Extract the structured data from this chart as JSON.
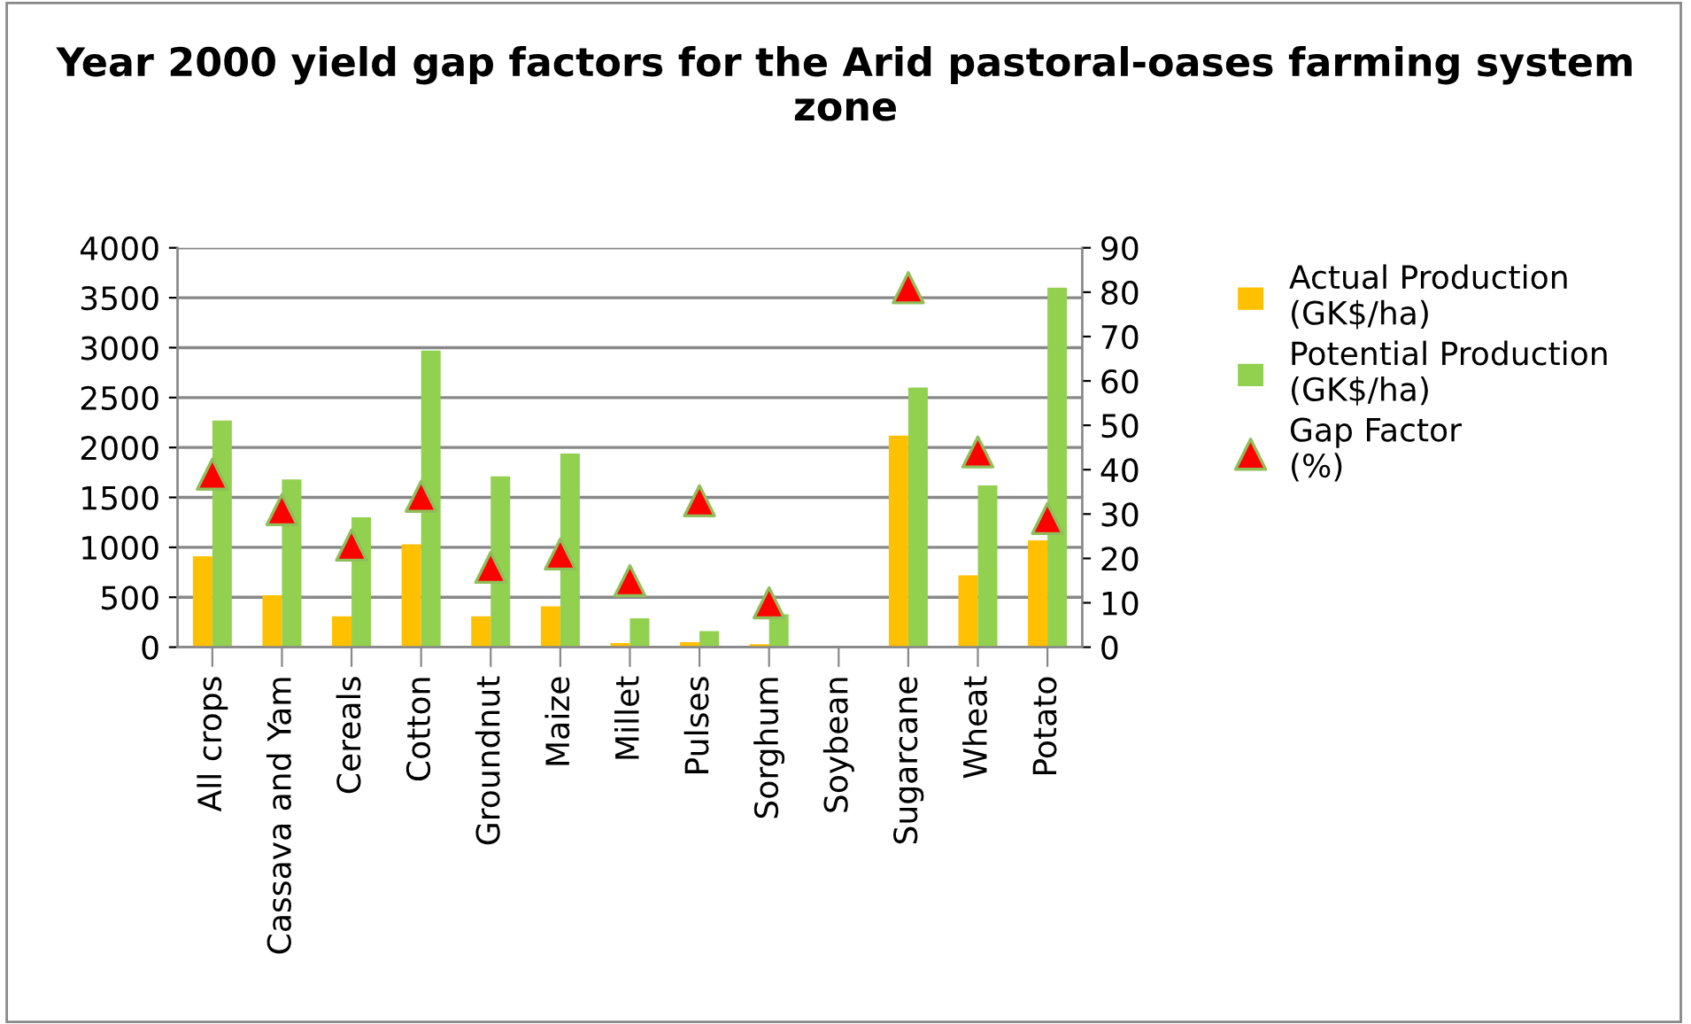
{
  "chart_data": {
    "type": "bar",
    "title": "Year 2000 yield gap factors for the Arid pastoral-oases farming system zone",
    "categories": [
      "All crops",
      "Cassava and Yam",
      "Cereals",
      "Cotton",
      "Groundnut",
      "Maize",
      "Millet",
      "Pulses",
      "Sorghum",
      "Soybean",
      "Sugarcane",
      "Wheat",
      "Potato"
    ],
    "series": [
      {
        "name": "Actual Production (GK$/ha)",
        "color": "#ffc000",
        "values": [
          910,
          520,
          310,
          1030,
          310,
          410,
          40,
          50,
          30,
          0,
          2120,
          720,
          1070
        ]
      },
      {
        "name": "Potential Production (GK$/ha)",
        "color": "#92d050",
        "values": [
          2270,
          1680,
          1300,
          2970,
          1710,
          1940,
          290,
          160,
          330,
          0,
          2600,
          1620,
          3600
        ]
      },
      {
        "name": "Gap Factor (%)",
        "type": "scatter",
        "axis": "y2",
        "marker": "triangle",
        "color": "#ff0000",
        "values": [
          39,
          31,
          23,
          34,
          18,
          21,
          15,
          33,
          10,
          null,
          81,
          44,
          29
        ]
      }
    ],
    "ylim": [
      0,
      4000
    ],
    "yticks": [
      0,
      500,
      1000,
      1500,
      2000,
      2500,
      3000,
      3500,
      4000
    ],
    "y2lim": [
      0,
      90
    ],
    "y2ticks": [
      0,
      10,
      20,
      30,
      40,
      50,
      60,
      70,
      80,
      90
    ],
    "grid": "y",
    "legend": "right"
  }
}
